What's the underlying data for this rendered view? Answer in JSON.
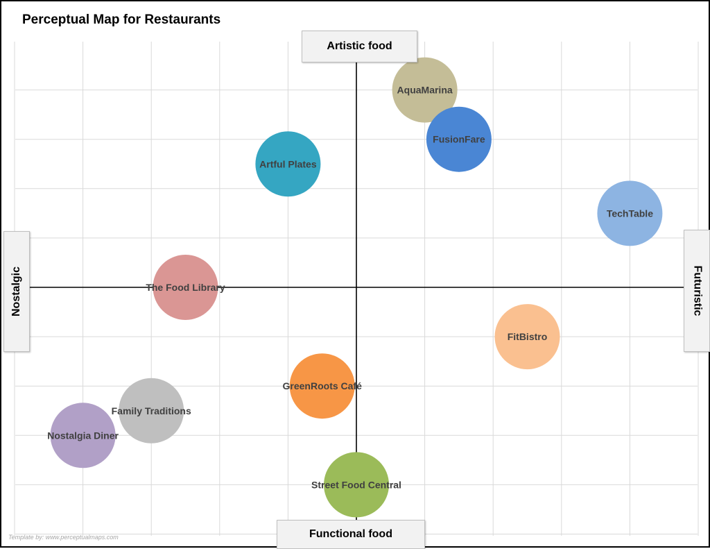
{
  "title": "Perceptual Map for Restaurants",
  "watermark": "Template by: www.perceptualmaps.com",
  "axes": {
    "top": "Artistic food",
    "bottom": "Functional food",
    "left": "Nostalgic",
    "right": "Futuristic"
  },
  "chart_data": {
    "type": "scatter",
    "title": "Perceptual Map for Restaurants",
    "xlim": [
      -5,
      5
    ],
    "ylim": [
      -5,
      5
    ],
    "grid": true,
    "points": [
      {
        "label": "AquaMarina",
        "x": 1.0,
        "y": 4.0,
        "color": "#c4bd97"
      },
      {
        "label": "FusionFare",
        "x": 1.5,
        "y": 3.0,
        "color": "#4a86d4"
      },
      {
        "label": "Artful Plates",
        "x": -1.0,
        "y": 2.5,
        "color": "#35a6c2"
      },
      {
        "label": "TechTable",
        "x": 4.0,
        "y": 1.5,
        "color": "#8db4e2"
      },
      {
        "label": "The Food Library",
        "x": -2.5,
        "y": 0.0,
        "color": "#da9694"
      },
      {
        "label": "FitBistro",
        "x": 2.5,
        "y": -1.0,
        "color": "#fac090"
      },
      {
        "label": "GreenRoots Café",
        "x": -0.5,
        "y": -2.0,
        "color": "#f79646"
      },
      {
        "label": "Family Traditions",
        "x": -3.0,
        "y": -2.5,
        "color": "#bfbfbf"
      },
      {
        "label": "Nostalgia Diner",
        "x": -4.0,
        "y": -3.0,
        "color": "#b1a0c7"
      },
      {
        "label": "Street Food Central",
        "x": 0.0,
        "y": -4.0,
        "color": "#9bbb59"
      }
    ]
  }
}
